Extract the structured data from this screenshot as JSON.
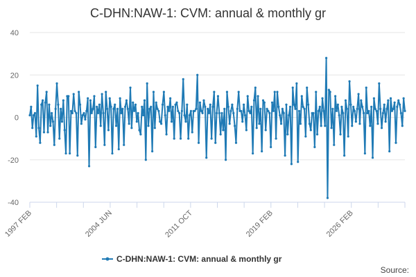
{
  "chart_data": {
    "type": "line",
    "title": "C-DHN:NAW-1: CVM: annual & monthly gr",
    "xlabel": "",
    "ylabel": "",
    "ylim": [
      -40,
      40
    ],
    "yticks": [
      -40,
      -20,
      0,
      20,
      40
    ],
    "x_start": "1997 FEB",
    "x_end": "2026 FEB",
    "x_tick_labels": [
      "1997 FEB",
      "2004 JUN",
      "2011 OCT",
      "2019 FEB",
      "2026 FEB"
    ],
    "grid": true,
    "legend_position": "bottom-center",
    "series": [
      {
        "name": "C-DHN:NAW-1: CVM: annual & monthly gr",
        "color": "#1f7ab5",
        "values": [
          1,
          5,
          -5,
          1,
          2,
          -9,
          15,
          -5,
          -12,
          6,
          8,
          -7,
          7,
          12,
          -7,
          6,
          -4,
          2,
          -2,
          -13,
          4,
          16,
          6,
          -10,
          4,
          -2,
          8,
          -6,
          -17,
          10,
          10,
          -17,
          3,
          2,
          11,
          3,
          2,
          -18,
          12,
          6,
          -3,
          1,
          2,
          -1,
          3,
          9,
          -23,
          8,
          2,
          4,
          10,
          -14,
          5,
          2,
          6,
          -4,
          11,
          2,
          -13,
          12,
          4,
          -6,
          9,
          5,
          -17,
          4,
          6,
          -4,
          4,
          -15,
          9,
          2,
          4,
          -13,
          5,
          8,
          4,
          -3,
          14,
          -5,
          7,
          3,
          6,
          -2,
          2,
          -6,
          -8,
          5,
          1,
          8,
          -20,
          16,
          -4,
          4,
          5,
          -16,
          12,
          -5,
          7,
          4,
          3,
          -2,
          -3,
          6,
          12,
          1,
          -8,
          5,
          3,
          9,
          -2,
          5,
          -10,
          6,
          7,
          3,
          2,
          -10,
          3,
          18,
          1,
          -2,
          6,
          -10,
          1,
          3,
          -7,
          3,
          3,
          4,
          20,
          -12,
          7,
          3,
          2,
          8,
          5,
          -19,
          4,
          2,
          6,
          -10,
          5,
          12,
          -12,
          2,
          10,
          2,
          -8,
          2,
          -6,
          4,
          -20,
          12,
          5,
          -3,
          3,
          6,
          2,
          -4,
          -12,
          4,
          12,
          3,
          3,
          -2,
          6,
          1,
          -6,
          10,
          3,
          2,
          5,
          -17,
          8,
          14,
          -5,
          10,
          -3,
          4,
          -16,
          8,
          7,
          -6,
          4,
          3,
          2,
          -14,
          7,
          3,
          12,
          -10,
          12,
          5,
          1,
          -3,
          4,
          2,
          -18,
          6,
          -8,
          1,
          5,
          -22,
          14,
          6,
          4,
          16,
          -21,
          3,
          -3,
          10,
          5,
          4,
          -9,
          14,
          6,
          -3,
          -6,
          2,
          2,
          -14,
          12,
          -8,
          3,
          5,
          -4,
          9,
          3,
          -4,
          28,
          -38,
          13,
          12,
          -5,
          4,
          -13,
          10,
          3,
          6,
          1,
          -8,
          5,
          2,
          -18,
          8,
          4,
          -9,
          17,
          6,
          -4,
          5,
          3,
          -2,
          4,
          11,
          -3,
          8,
          5,
          2,
          -17,
          14,
          2,
          3,
          -4,
          5,
          -19,
          9,
          4,
          3,
          -3,
          16,
          4,
          -5,
          2,
          6,
          -2,
          4,
          8,
          -16,
          9,
          3,
          4,
          7,
          -12,
          5,
          8,
          6,
          2,
          -4,
          9,
          3
        ]
      }
    ]
  },
  "source_label": "Source:"
}
